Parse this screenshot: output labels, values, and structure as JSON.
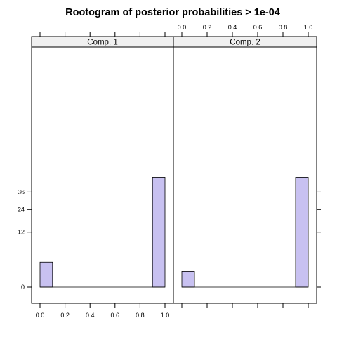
{
  "chart_data": {
    "type": "bar",
    "title": "Rootogram of posterior probabilities > 1e-04",
    "x_ticks": [
      "0.0",
      "0.2",
      "0.4",
      "0.6",
      "0.8",
      "1.0"
    ],
    "y_ticks": [
      "0",
      "12",
      "24",
      "36"
    ],
    "scale": "square-root",
    "panels": [
      {
        "label": "Comp. 1",
        "bins": [
          {
            "x0": 0.0,
            "x1": 0.1,
            "count": 2.5
          },
          {
            "x0": 0.9,
            "x1": 1.0,
            "count": 48
          }
        ]
      },
      {
        "label": "Comp. 2",
        "bins": [
          {
            "x0": 0.0,
            "x1": 0.1,
            "count": 1
          },
          {
            "x0": 0.9,
            "x1": 1.0,
            "count": 48
          }
        ]
      }
    ],
    "colors": {
      "bar_fill": "#c8c1f1",
      "strip_fill": "#f0f0f0"
    }
  }
}
